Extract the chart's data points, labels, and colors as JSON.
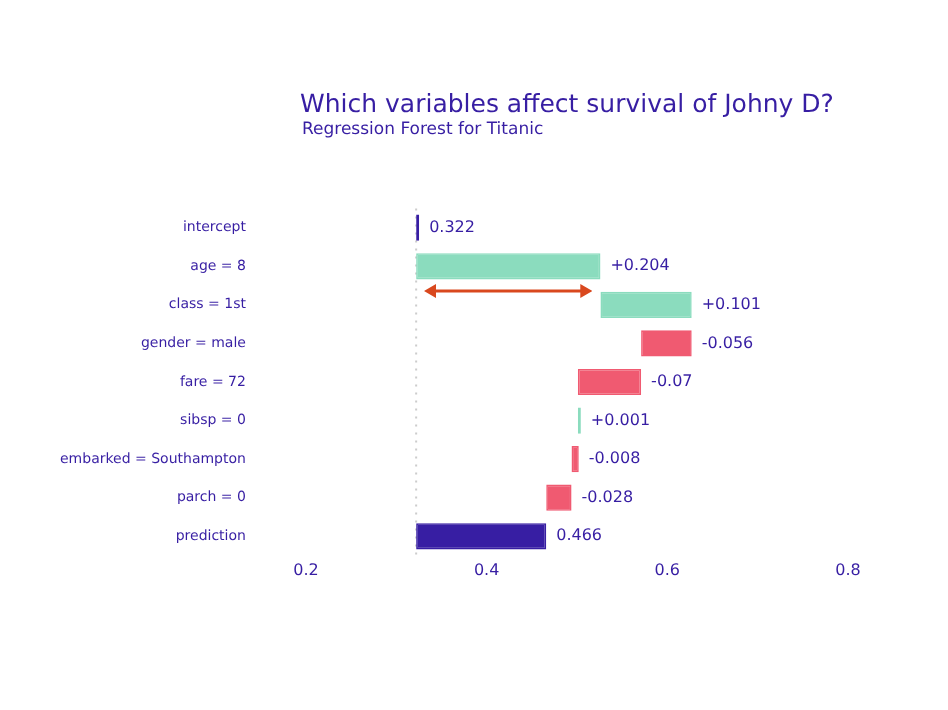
{
  "chart_data": {
    "type": "bar",
    "orientation": "horizontal",
    "title": "Which variables affect survival of Johny D?",
    "subtitle": "Regression Forest for Titanic",
    "categories": [
      "intercept",
      "age = 8",
      "class = 1st",
      "gender = male",
      "fare = 72",
      "sibsp = 0",
      "embarked = Southampton",
      "parch = 0",
      "prediction"
    ],
    "base": [
      0.322,
      0.322,
      0.526,
      0.627,
      0.571,
      0.501,
      0.502,
      0.494,
      0.322
    ],
    "values": [
      0,
      0.204,
      0.101,
      -0.056,
      -0.07,
      0.001,
      -0.008,
      -0.028,
      0.144
    ],
    "value_labels": [
      "0.322",
      "+0.204",
      "+0.101",
      "-0.056",
      "-0.07",
      "+0.001",
      "-0.008",
      "-0.028",
      "0.466"
    ],
    "colors": [
      "#371ea3",
      "#8bdcbe",
      "#8bdcbe",
      "#f05a71",
      "#f05a71",
      "#8bdcbe",
      "#f05a71",
      "#f05a71",
      "#371ea3"
    ],
    "xlim": [
      0.2,
      0.8
    ],
    "xticks": [
      0.2,
      0.4,
      0.6,
      0.8
    ],
    "ref_lines": [
      {
        "axis": "x",
        "value": 0.322,
        "line_style": "dotted",
        "color": "#cccccc"
      }
    ],
    "grid": false,
    "legend": false
  }
}
